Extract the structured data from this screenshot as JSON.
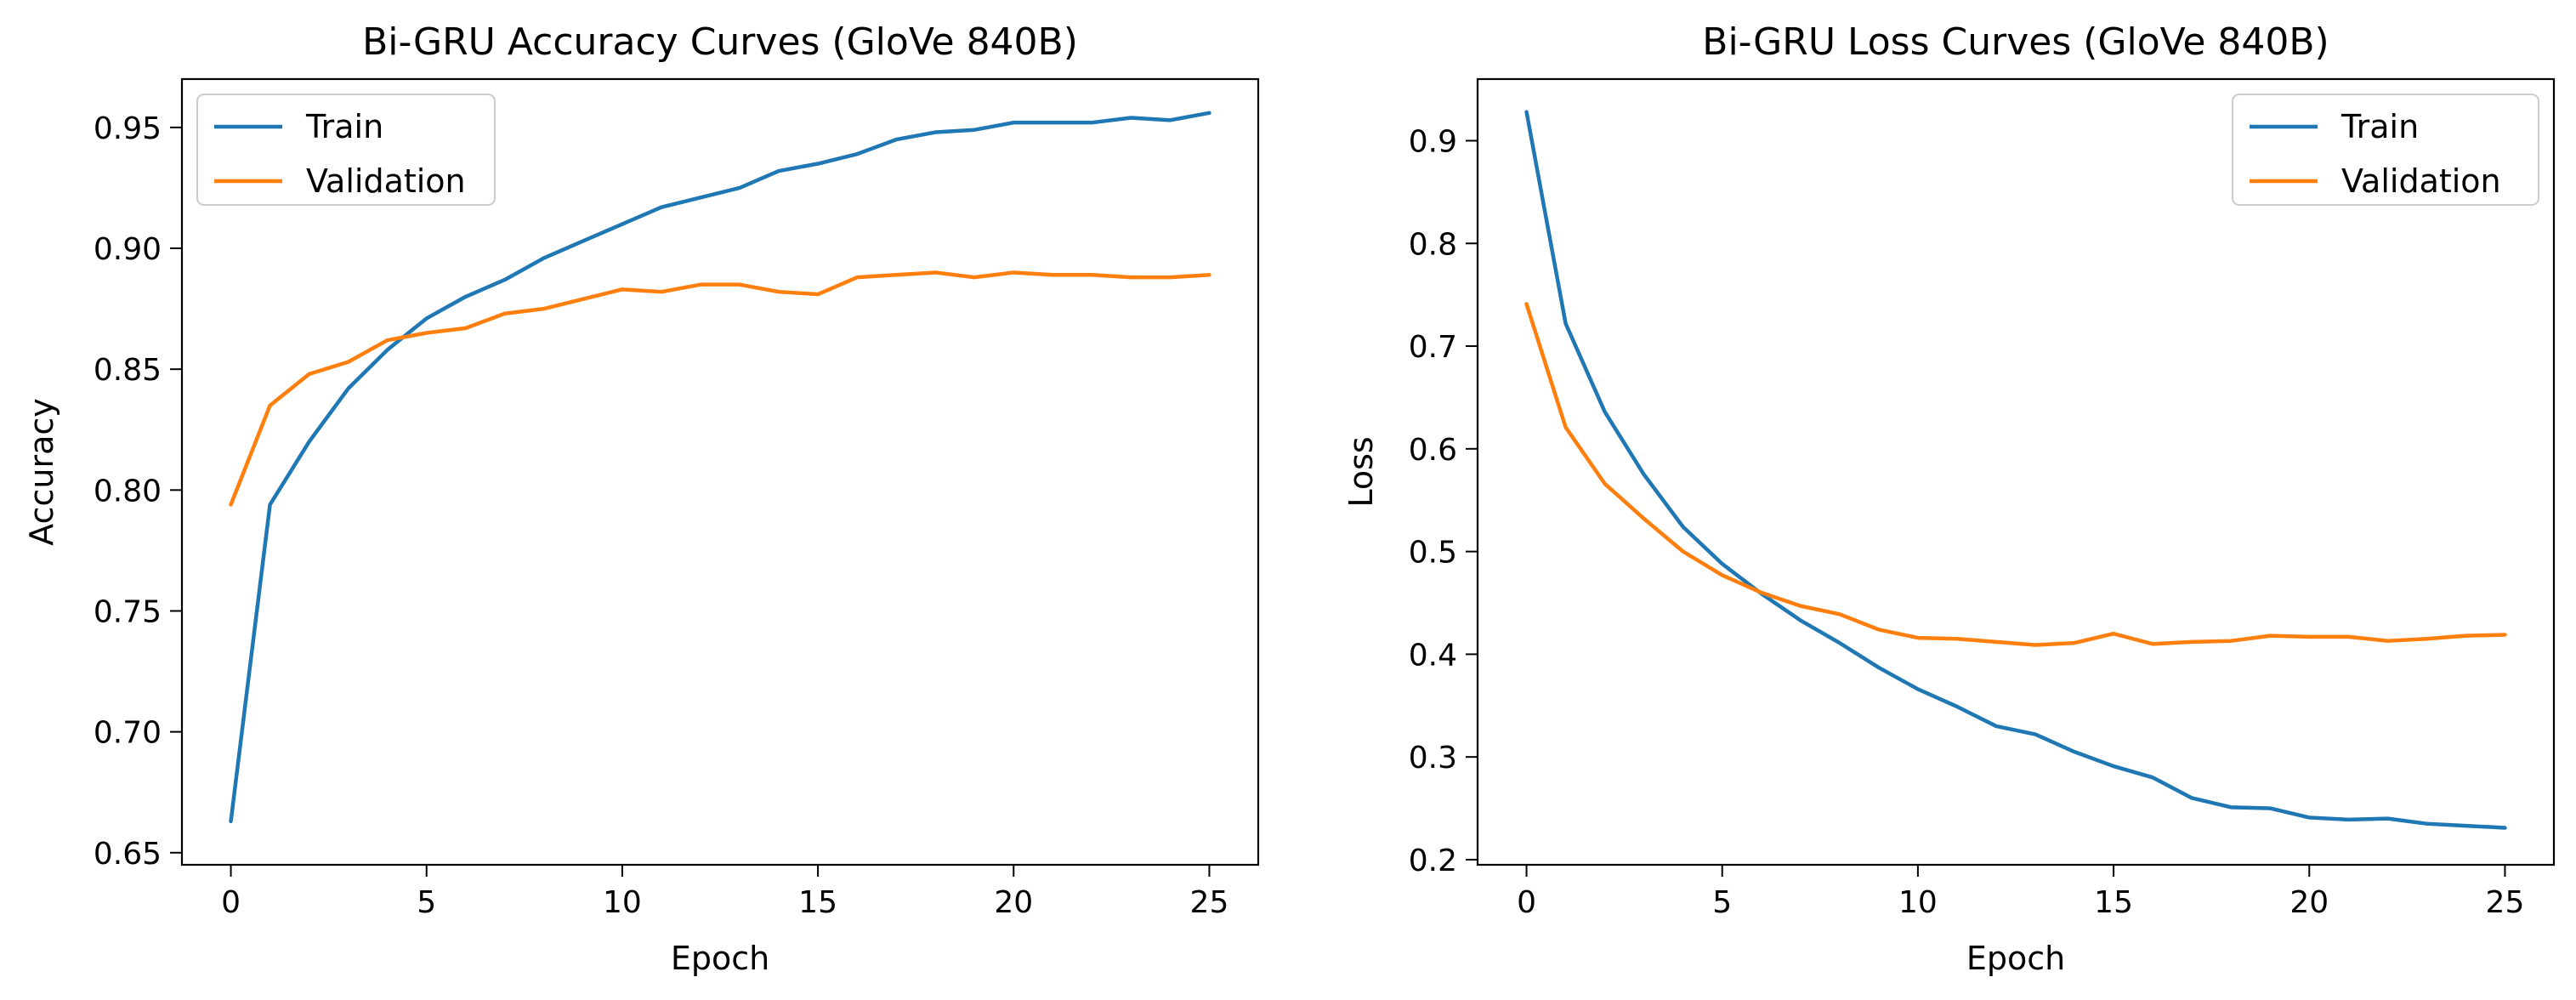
{
  "chart_data": [
    {
      "type": "line",
      "title": "Bi-GRU Accuracy Curves (GloVe 840B)",
      "xlabel": "Epoch",
      "ylabel": "Accuracy",
      "xlim": [
        -1.25,
        26.25
      ],
      "ylim": [
        0.645,
        0.97
      ],
      "xticks": [
        0,
        5,
        10,
        15,
        20,
        25
      ],
      "yticks": [
        0.65,
        0.7,
        0.75,
        0.8,
        0.85,
        0.9,
        0.95
      ],
      "ytick_labels": [
        "0.65",
        "0.70",
        "0.75",
        "0.80",
        "0.85",
        "0.90",
        "0.95"
      ],
      "legend_position": "top-left",
      "x": [
        0,
        1,
        2,
        3,
        4,
        5,
        6,
        7,
        8,
        9,
        10,
        11,
        12,
        13,
        14,
        15,
        16,
        17,
        18,
        19,
        20,
        21,
        22,
        23,
        24,
        25
      ],
      "series": [
        {
          "name": "Train",
          "color": "#1f77b4",
          "values": [
            0.663,
            0.794,
            0.82,
            0.842,
            0.858,
            0.871,
            0.88,
            0.887,
            0.896,
            0.903,
            0.91,
            0.917,
            0.921,
            0.925,
            0.932,
            0.935,
            0.939,
            0.945,
            0.948,
            0.949,
            0.952,
            0.952,
            0.952,
            0.954,
            0.953,
            0.956
          ]
        },
        {
          "name": "Validation",
          "color": "#ff7f0e",
          "values": [
            0.794,
            0.835,
            0.848,
            0.853,
            0.862,
            0.865,
            0.867,
            0.873,
            0.875,
            0.879,
            0.883,
            0.882,
            0.885,
            0.885,
            0.882,
            0.881,
            0.888,
            0.889,
            0.89,
            0.888,
            0.89,
            0.889,
            0.889,
            0.888,
            0.888,
            0.889
          ]
        }
      ]
    },
    {
      "type": "line",
      "title": "Bi-GRU Loss Curves (GloVe 840B)",
      "xlabel": "Epoch",
      "ylabel": "Loss",
      "xlim": [
        -1.25,
        26.25
      ],
      "ylim": [
        0.195,
        0.96
      ],
      "xticks": [
        0,
        5,
        10,
        15,
        20,
        25
      ],
      "yticks": [
        0.2,
        0.3,
        0.4,
        0.5,
        0.6,
        0.7,
        0.8,
        0.9
      ],
      "ytick_labels": [
        "0.2",
        "0.3",
        "0.4",
        "0.5",
        "0.6",
        "0.7",
        "0.8",
        "0.9"
      ],
      "legend_position": "top-right",
      "x": [
        0,
        1,
        2,
        3,
        4,
        5,
        6,
        7,
        8,
        9,
        10,
        11,
        12,
        13,
        14,
        15,
        16,
        17,
        18,
        19,
        20,
        21,
        22,
        23,
        24,
        25
      ],
      "series": [
        {
          "name": "Train",
          "color": "#1f77b4",
          "values": [
            0.928,
            0.722,
            0.636,
            0.575,
            0.524,
            0.488,
            0.459,
            0.433,
            0.411,
            0.387,
            0.366,
            0.349,
            0.33,
            0.322,
            0.305,
            0.291,
            0.28,
            0.26,
            0.251,
            0.25,
            0.241,
            0.239,
            0.24,
            0.235,
            0.233,
            0.231
          ]
        },
        {
          "name": "Validation",
          "color": "#ff7f0e",
          "values": [
            0.741,
            0.621,
            0.566,
            0.532,
            0.5,
            0.477,
            0.46,
            0.447,
            0.439,
            0.424,
            0.416,
            0.415,
            0.412,
            0.409,
            0.411,
            0.42,
            0.41,
            0.412,
            0.413,
            0.418,
            0.417,
            0.417,
            0.413,
            0.415,
            0.418,
            0.419
          ]
        }
      ]
    }
  ]
}
